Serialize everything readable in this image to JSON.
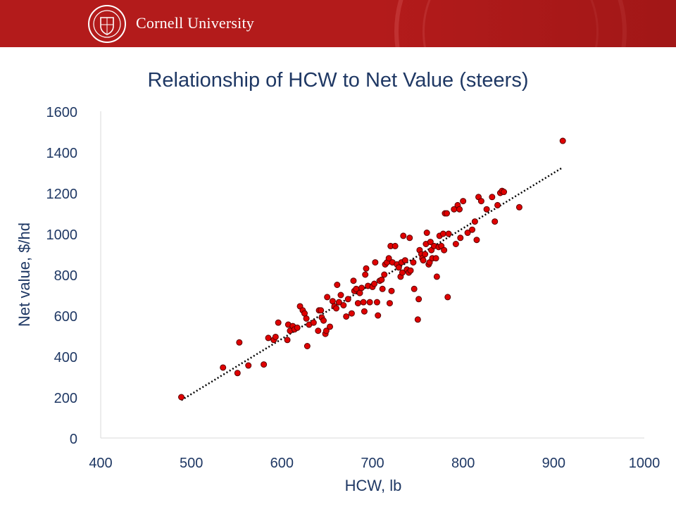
{
  "header": {
    "brand": "Cornell University",
    "logo_icon": "cornell-seal-icon",
    "banner_color": "#b31b1b"
  },
  "chart_data": {
    "type": "scatter",
    "title": "Relationship of HCW to Net Value (steers)",
    "xlabel": "HCW, lb",
    "ylabel": "Net value, $/hd",
    "xlim": [
      400,
      1000
    ],
    "ylim": [
      0,
      1600
    ],
    "xticks": [
      400,
      500,
      600,
      700,
      800,
      900,
      1000
    ],
    "yticks": [
      0,
      200,
      400,
      600,
      800,
      1000,
      1200,
      1400,
      1600
    ],
    "grid": false,
    "legend": "none",
    "marker_color": "#e00000",
    "text_color": "#1f3864",
    "series": [
      {
        "points": [
          [
            489,
            200
          ],
          [
            535,
            345
          ],
          [
            551,
            318
          ],
          [
            553,
            468
          ],
          [
            563,
            355
          ],
          [
            580,
            360
          ],
          [
            585,
            490
          ],
          [
            591,
            480
          ],
          [
            593,
            495
          ],
          [
            596,
            565
          ],
          [
            606,
            480
          ],
          [
            607,
            555
          ],
          [
            609,
            525
          ],
          [
            612,
            548
          ],
          [
            614,
            532
          ],
          [
            617,
            540
          ],
          [
            620,
            645
          ],
          [
            623,
            625
          ],
          [
            625,
            610
          ],
          [
            627,
            585
          ],
          [
            628,
            450
          ],
          [
            630,
            555
          ],
          [
            635,
            565
          ],
          [
            640,
            525
          ],
          [
            641,
            625
          ],
          [
            643,
            625
          ],
          [
            644,
            590
          ],
          [
            646,
            575
          ],
          [
            648,
            510
          ],
          [
            649,
            525
          ],
          [
            650,
            690
          ],
          [
            653,
            545
          ],
          [
            656,
            670
          ],
          [
            658,
            645
          ],
          [
            660,
            635
          ],
          [
            661,
            750
          ],
          [
            663,
            665
          ],
          [
            665,
            700
          ],
          [
            668,
            650
          ],
          [
            671,
            595
          ],
          [
            673,
            680
          ],
          [
            677,
            610
          ],
          [
            679,
            770
          ],
          [
            680,
            720
          ],
          [
            682,
            730
          ],
          [
            684,
            660
          ],
          [
            686,
            710
          ],
          [
            688,
            735
          ],
          [
            690,
            665
          ],
          [
            691,
            620
          ],
          [
            692,
            800
          ],
          [
            693,
            830
          ],
          [
            695,
            745
          ],
          [
            697,
            665
          ],
          [
            700,
            740
          ],
          [
            702,
            755
          ],
          [
            703,
            860
          ],
          [
            705,
            665
          ],
          [
            706,
            600
          ],
          [
            708,
            770
          ],
          [
            710,
            775
          ],
          [
            711,
            730
          ],
          [
            713,
            800
          ],
          [
            714,
            850
          ],
          [
            716,
            860
          ],
          [
            718,
            880
          ],
          [
            719,
            660
          ],
          [
            720,
            940
          ],
          [
            721,
            720
          ],
          [
            722,
            860
          ],
          [
            725,
            940
          ],
          [
            727,
            850
          ],
          [
            729,
            835
          ],
          [
            731,
            790
          ],
          [
            732,
            860
          ],
          [
            733,
            810
          ],
          [
            734,
            990
          ],
          [
            736,
            870
          ],
          [
            738,
            825
          ],
          [
            740,
            810
          ],
          [
            741,
            980
          ],
          [
            742,
            820
          ],
          [
            745,
            860
          ],
          [
            746,
            730
          ],
          [
            750,
            580
          ],
          [
            751,
            680
          ],
          [
            752,
            920
          ],
          [
            754,
            900
          ],
          [
            755,
            880
          ],
          [
            756,
            870
          ],
          [
            758,
            900
          ],
          [
            759,
            950
          ],
          [
            760,
            1005
          ],
          [
            762,
            850
          ],
          [
            763,
            860
          ],
          [
            764,
            960
          ],
          [
            765,
            920
          ],
          [
            766,
            880
          ],
          [
            768,
            940
          ],
          [
            770,
            880
          ],
          [
            771,
            790
          ],
          [
            773,
            935
          ],
          [
            774,
            990
          ],
          [
            776,
            940
          ],
          [
            778,
            1000
          ],
          [
            779,
            920
          ],
          [
            780,
            1100
          ],
          [
            782,
            1100
          ],
          [
            783,
            690
          ],
          [
            784,
            1000
          ],
          [
            790,
            1120
          ],
          [
            792,
            950
          ],
          [
            794,
            1140
          ],
          [
            796,
            1120
          ],
          [
            797,
            980
          ],
          [
            800,
            1160
          ],
          [
            805,
            1005
          ],
          [
            810,
            1020
          ],
          [
            813,
            1060
          ],
          [
            815,
            970
          ],
          [
            817,
            1180
          ],
          [
            820,
            1160
          ],
          [
            826,
            1120
          ],
          [
            832,
            1180
          ],
          [
            835,
            1060
          ],
          [
            838,
            1140
          ],
          [
            841,
            1200
          ],
          [
            843,
            1210
          ],
          [
            845,
            1205
          ],
          [
            862,
            1130
          ],
          [
            910,
            1455
          ]
        ]
      }
    ],
    "trendline": {
      "style": "dotted",
      "color": "#000000",
      "start": [
        489,
        185
      ],
      "end": [
        910,
        1325
      ]
    }
  }
}
